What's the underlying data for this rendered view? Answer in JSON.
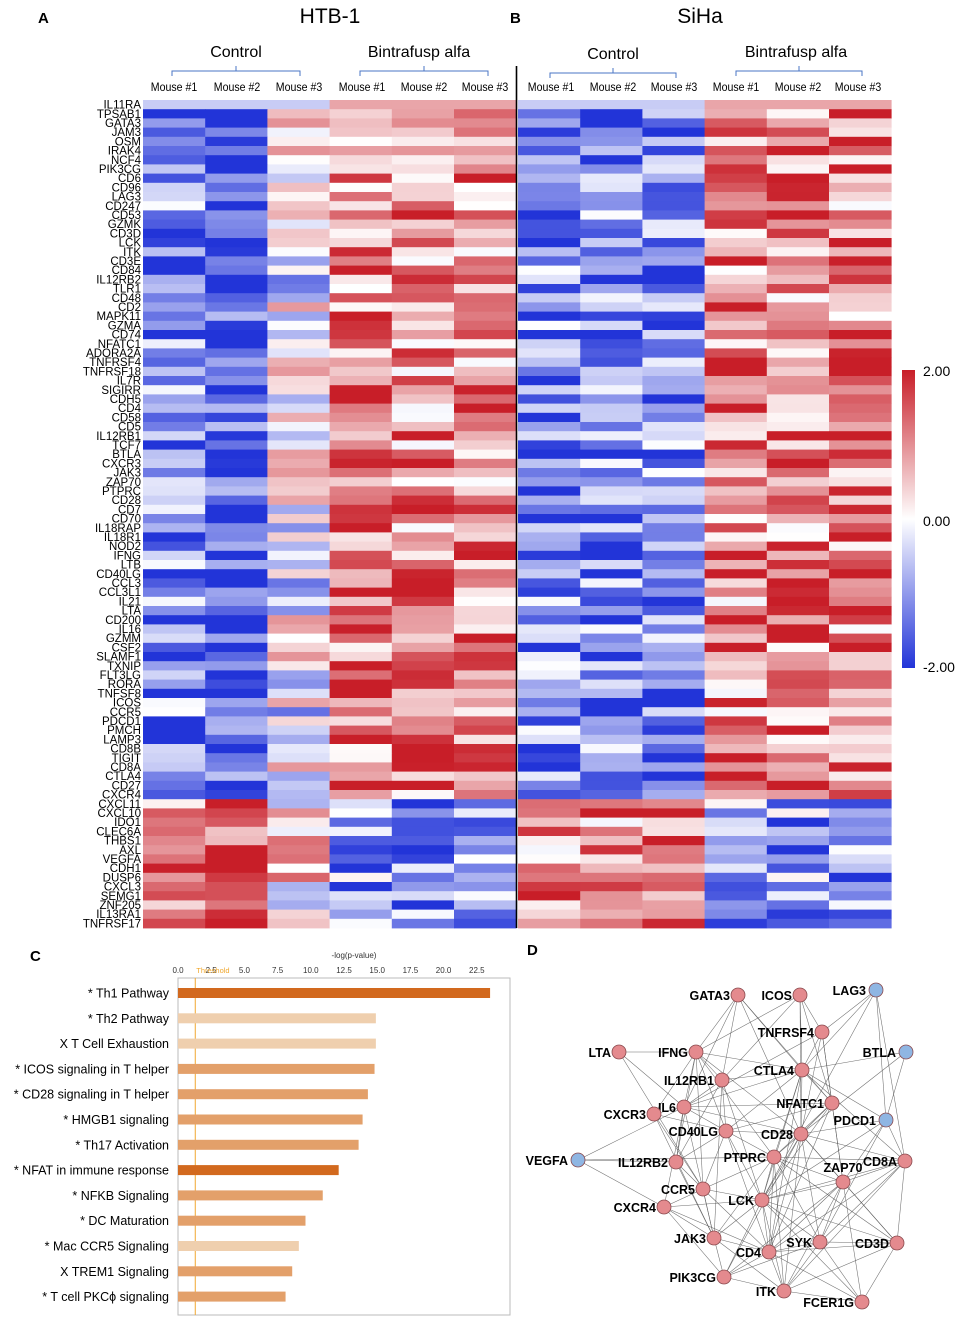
{
  "panels": {
    "A": {
      "letter": "A",
      "title": "HTB-1"
    },
    "B": {
      "letter": "B",
      "title": "SiHa"
    },
    "C": {
      "letter": "C"
    },
    "D": {
      "letter": "D"
    }
  },
  "groups": {
    "control": "Control",
    "treated": "Bintrafusp alfa"
  },
  "mice": [
    "Mouse #1",
    "Mouse #2",
    "Mouse #3"
  ],
  "genes": [
    "IL11RA",
    "TPSAB1",
    "GATA3",
    "JAM3",
    "OSM",
    "IRAK4",
    "NCF4",
    "PIK3CG",
    "CD6",
    "CD96",
    "LAG3",
    "CD247",
    "CD53",
    "GZMK",
    "CD3D",
    "LCK",
    "ITK",
    "CD3E",
    "CD84",
    "IL12RB2",
    "TLR1",
    "CD48",
    "CD2",
    "MAPK11",
    "GZMA",
    "CD74",
    "NFATC1",
    "ADORA2A",
    "TNFRSF4",
    "TNFRSF18",
    "IL7R",
    "SIGIRR",
    "CDH5",
    "CD4",
    "CD58",
    "CD5",
    "IL12RB1",
    "TCF7",
    "BTLA",
    "CXCR3",
    "JAK3",
    "ZAP70",
    "PTPRC",
    "CD28",
    "CD7",
    "CD70",
    "IL18RAP",
    "IL18R1",
    "NOD2",
    "IFNG",
    "LTB",
    "CD40LG",
    "CCL3",
    "CCL3L1",
    "IL21",
    "LTA",
    "CD200",
    "IL16",
    "GZMM",
    "CSF2",
    "SLAMF1",
    "TXNIP",
    "FLT3LG",
    "RORA",
    "TNFSF8",
    "ICOS",
    "CCR5",
    "PDCD1",
    "PMCH",
    "LAMP3",
    "CD8B",
    "TIGIT",
    "CD8A",
    "CTLA4",
    "CD27",
    "CXCR4",
    "CXCL11",
    "CXCL10",
    "IDO1",
    "CLEC6A",
    "THBS1",
    "AXL",
    "VEGFA",
    "CDH1",
    "DUSP6",
    "CXCL3",
    "SEMG1",
    "ZNF205",
    "IL13RA1",
    "TNFRSF17"
  ],
  "colorbar": {
    "max_label": "2.00",
    "mid_label": "0.00",
    "min_label": "-2.00",
    "range": [
      -2,
      2
    ],
    "colors": {
      "high": "#c81e28",
      "mid": "#ffffff",
      "low": "#2234d8"
    }
  },
  "bar_chart": {
    "axis_title": "-log(p-value)",
    "threshold_label": "Threshold",
    "threshold_value": 1.3,
    "xlim": [
      0,
      25
    ],
    "ticks": [
      "0.0",
      "2.5",
      "5.0",
      "7.5",
      "10.0",
      "12.5",
      "15.0",
      "17.5",
      "20.0",
      "22.5"
    ],
    "tick_values": [
      0,
      2.5,
      5,
      7.5,
      10,
      12.5,
      15,
      17.5,
      20,
      22.5
    ],
    "colors": {
      "dark": "#d2691e",
      "medium": "#e3a06a",
      "light": "#efcfae",
      "axis": "#999999"
    },
    "pathways": [
      {
        "label": "* Th1 Pathway",
        "value": 23.5,
        "shade": "dark"
      },
      {
        "label": "* Th2 Pathway",
        "value": 14.9,
        "shade": "light"
      },
      {
        "label": "X T Cell Exhaustion",
        "value": 14.9,
        "shade": "light"
      },
      {
        "label": "* ICOS signaling in T helper",
        "value": 14.8,
        "shade": "medium"
      },
      {
        "label": "* CD28 signaling in T helper",
        "value": 14.3,
        "shade": "medium"
      },
      {
        "label": "* HMGB1 signaling",
        "value": 13.9,
        "shade": "medium"
      },
      {
        "label": "* Th17 Activation",
        "value": 13.6,
        "shade": "medium"
      },
      {
        "label": "* NFAT in immune response",
        "value": 12.1,
        "shade": "dark"
      },
      {
        "label": "* NFKB Signaling",
        "value": 10.9,
        "shade": "medium"
      },
      {
        "label": "* DC Maturation",
        "value": 9.6,
        "shade": "medium"
      },
      {
        "label": "* Mac CCR5 Signaling",
        "value": 9.1,
        "shade": "light"
      },
      {
        "label": "X TREM1 Signaling",
        "value": 8.6,
        "shade": "medium"
      },
      {
        "label": "* T cell PKCϕ signaling",
        "value": 8.1,
        "shade": "medium"
      }
    ]
  },
  "network": {
    "colors": {
      "up": "#e48a8e",
      "down": "#8fb6e3"
    },
    "nodes": [
      {
        "id": "GATA3",
        "label": "GATA3",
        "type": "up"
      },
      {
        "id": "ICOS",
        "label": "ICOS",
        "type": "up"
      },
      {
        "id": "LAG3",
        "label": "LAG3",
        "type": "down"
      },
      {
        "id": "TNFRSF4",
        "label": "TNFRSF4",
        "type": "up"
      },
      {
        "id": "LTA",
        "label": "LTA",
        "type": "up"
      },
      {
        "id": "IFNG",
        "label": "IFNG",
        "type": "up"
      },
      {
        "id": "BTLA",
        "label": "BTLA",
        "type": "down"
      },
      {
        "id": "IL12RB1",
        "label": "IL12RB1",
        "type": "up"
      },
      {
        "id": "CTLA4",
        "label": "CTLA4",
        "type": "up"
      },
      {
        "id": "IL6",
        "label": "IL6",
        "type": "up"
      },
      {
        "id": "CXCR3",
        "label": "CXCR3",
        "type": "up"
      },
      {
        "id": "NFATC1",
        "label": "NFATC1",
        "type": "up"
      },
      {
        "id": "PDCD1",
        "label": "PDCD1",
        "type": "down"
      },
      {
        "id": "CD40LG",
        "label": "CD40LG",
        "type": "up"
      },
      {
        "id": "CD28",
        "label": "CD28",
        "type": "up"
      },
      {
        "id": "VEGFA",
        "label": "VEGFA",
        "type": "down"
      },
      {
        "id": "IL12RB2",
        "label": "IL12RB2",
        "type": "up"
      },
      {
        "id": "PTPRC",
        "label": "PTPRC",
        "type": "up"
      },
      {
        "id": "CD8A",
        "label": "CD8A",
        "type": "up"
      },
      {
        "id": "CCR5",
        "label": "CCR5",
        "type": "up"
      },
      {
        "id": "ZAP70",
        "label": "ZAP70",
        "type": "up"
      },
      {
        "id": "LCK",
        "label": "LCK",
        "type": "up"
      },
      {
        "id": "CXCR4",
        "label": "CXCR4",
        "type": "up"
      },
      {
        "id": "JAK3",
        "label": "JAK3",
        "type": "up"
      },
      {
        "id": "SYK",
        "label": "SYK",
        "type": "up"
      },
      {
        "id": "CD3D",
        "label": "CD3D",
        "type": "up"
      },
      {
        "id": "CD4",
        "label": "CD4",
        "type": "up"
      },
      {
        "id": "PIK3CG",
        "label": "PIK3CG",
        "type": "up"
      },
      {
        "id": "ITK",
        "label": "ITK",
        "type": "up"
      },
      {
        "id": "FCER1G",
        "label": "FCER1G",
        "type": "up"
      }
    ],
    "edges": [
      [
        "GATA3",
        "IFNG"
      ],
      [
        "GATA3",
        "IL12RB1"
      ],
      [
        "GATA3",
        "CTLA4"
      ],
      [
        "GATA3",
        "IL6"
      ],
      [
        "GATA3",
        "CD28"
      ],
      [
        "GATA3",
        "NFATC1"
      ],
      [
        "ICOS",
        "TNFRSF4"
      ],
      [
        "ICOS",
        "CTLA4"
      ],
      [
        "ICOS",
        "CD28"
      ],
      [
        "ICOS",
        "IFNG"
      ],
      [
        "ICOS",
        "IL12RB1"
      ],
      [
        "ICOS",
        "NFATC1"
      ],
      [
        "LAG3",
        "CTLA4"
      ],
      [
        "LAG3",
        "CD8A"
      ],
      [
        "LAG3",
        "LCK"
      ],
      [
        "LAG3",
        "PDCD1"
      ],
      [
        "LAG3",
        "TNFRSF4"
      ],
      [
        "TNFRSF4",
        "CTLA4"
      ],
      [
        "TNFRSF4",
        "CD28"
      ],
      [
        "TNFRSF4",
        "ZAP70"
      ],
      [
        "TNFRSF4",
        "IL6"
      ],
      [
        "TNFRSF4",
        "NFATC1"
      ],
      [
        "LTA",
        "IFNG"
      ],
      [
        "LTA",
        "IL6"
      ],
      [
        "LTA",
        "CCR5"
      ],
      [
        "IFNG",
        "IL12RB1"
      ],
      [
        "IFNG",
        "IL6"
      ],
      [
        "IFNG",
        "CD40LG"
      ],
      [
        "IFNG",
        "CTLA4"
      ],
      [
        "IFNG",
        "IL12RB2"
      ],
      [
        "IFNG",
        "CXCR3"
      ],
      [
        "IFNG",
        "CD28"
      ],
      [
        "IFNG",
        "CCR5"
      ],
      [
        "IFNG",
        "PTPRC"
      ],
      [
        "BTLA",
        "CTLA4"
      ],
      [
        "BTLA",
        "CD28"
      ],
      [
        "BTLA",
        "PDCD1"
      ],
      [
        "IL12RB1",
        "IL6"
      ],
      [
        "IL12RB1",
        "IL12RB2"
      ],
      [
        "IL12RB1",
        "CTLA4"
      ],
      [
        "IL12RB1",
        "CD40LG"
      ],
      [
        "IL12RB1",
        "LCK"
      ],
      [
        "IL12RB1",
        "JAK3"
      ],
      [
        "CTLA4",
        "CD28"
      ],
      [
        "CTLA4",
        "NFATC1"
      ],
      [
        "CTLA4",
        "PDCD1"
      ],
      [
        "CTLA4",
        "CD40LG"
      ],
      [
        "CTLA4",
        "PTPRC"
      ],
      [
        "CTLA4",
        "LCK"
      ],
      [
        "CTLA4",
        "CD8A"
      ],
      [
        "CTLA4",
        "CD4"
      ],
      [
        "CTLA4",
        "IL6"
      ],
      [
        "IL6",
        "CXCR3"
      ],
      [
        "IL6",
        "CD40LG"
      ],
      [
        "IL6",
        "NFATC1"
      ],
      [
        "IL6",
        "CD28"
      ],
      [
        "IL6",
        "VEGFA"
      ],
      [
        "IL6",
        "CXCR4"
      ],
      [
        "IL6",
        "JAK3"
      ],
      [
        "IL6",
        "IL12RB2"
      ],
      [
        "CXCR3",
        "CD40LG"
      ],
      [
        "CXCR3",
        "JAK3"
      ],
      [
        "CXCR3",
        "CCR5"
      ],
      [
        "NFATC1",
        "CD28"
      ],
      [
        "NFATC1",
        "PTPRC"
      ],
      [
        "NFATC1",
        "ZAP70"
      ],
      [
        "NFATC1",
        "CD40LG"
      ],
      [
        "NFATC1",
        "LCK"
      ],
      [
        "NFATC1",
        "CD4"
      ],
      [
        "PDCD1",
        "CD28"
      ],
      [
        "PDCD1",
        "LCK"
      ],
      [
        "PDCD1",
        "ZAP70"
      ],
      [
        "PDCD1",
        "CD8A"
      ],
      [
        "PDCD1",
        "SYK"
      ],
      [
        "CD40LG",
        "CD28"
      ],
      [
        "CD40LG",
        "CD4"
      ],
      [
        "CD40LG",
        "PTPRC"
      ],
      [
        "CD40LG",
        "IL12RB2"
      ],
      [
        "CD40LG",
        "CCR5"
      ],
      [
        "CD40LG",
        "LCK"
      ],
      [
        "CD28",
        "PTPRC"
      ],
      [
        "CD28",
        "ZAP70"
      ],
      [
        "CD28",
        "LCK"
      ],
      [
        "CD28",
        "CD8A"
      ],
      [
        "CD28",
        "CD4"
      ],
      [
        "CD28",
        "SYK"
      ],
      [
        "CD28",
        "ITK"
      ],
      [
        "CD28",
        "CD3D"
      ],
      [
        "CD28",
        "PIK3CG"
      ],
      [
        "VEGFA",
        "IL12RB2"
      ],
      [
        "VEGFA",
        "CXCR4"
      ],
      [
        "VEGFA",
        "PTPRC"
      ],
      [
        "IL12RB2",
        "JAK3"
      ],
      [
        "IL12RB2",
        "CCR5"
      ],
      [
        "PTPRC",
        "LCK"
      ],
      [
        "PTPRC",
        "ZAP70"
      ],
      [
        "PTPRC",
        "CD4"
      ],
      [
        "PTPRC",
        "SYK"
      ],
      [
        "PTPRC",
        "JAK3"
      ],
      [
        "PTPRC",
        "CD3D"
      ],
      [
        "PTPRC",
        "ITK"
      ],
      [
        "PTPRC",
        "CCR5"
      ],
      [
        "PTPRC",
        "CD8A"
      ],
      [
        "CD8A",
        "LCK"
      ],
      [
        "CD8A",
        "ZAP70"
      ],
      [
        "CD8A",
        "CD3D"
      ],
      [
        "CD8A",
        "SYK"
      ],
      [
        "CD8A",
        "CD4"
      ],
      [
        "CD8A",
        "ITK"
      ],
      [
        "CCR5",
        "CXCR4"
      ],
      [
        "CCR5",
        "LCK"
      ],
      [
        "CCR5",
        "JAK3"
      ],
      [
        "CCR5",
        "CD4"
      ],
      [
        "ZAP70",
        "LCK"
      ],
      [
        "ZAP70",
        "SYK"
      ],
      [
        "ZAP70",
        "CD3D"
      ],
      [
        "ZAP70",
        "ITK"
      ],
      [
        "ZAP70",
        "CD4"
      ],
      [
        "ZAP70",
        "FCER1G"
      ],
      [
        "ZAP70",
        "PIK3CG"
      ],
      [
        "LCK",
        "CD4"
      ],
      [
        "LCK",
        "SYK"
      ],
      [
        "LCK",
        "ITK"
      ],
      [
        "LCK",
        "CD3D"
      ],
      [
        "LCK",
        "JAK3"
      ],
      [
        "LCK",
        "PIK3CG"
      ],
      [
        "LCK",
        "CXCR4"
      ],
      [
        "LCK",
        "FCER1G"
      ],
      [
        "CXCR4",
        "JAK3"
      ],
      [
        "CXCR4",
        "CD4"
      ],
      [
        "CXCR4",
        "PIK3CG"
      ],
      [
        "JAK3",
        "CD4"
      ],
      [
        "JAK3",
        "PIK3CG"
      ],
      [
        "JAK3",
        "ITK"
      ],
      [
        "SYK",
        "CD3D"
      ],
      [
        "SYK",
        "ITK"
      ],
      [
        "SYK",
        "FCER1G"
      ],
      [
        "SYK",
        "PIK3CG"
      ],
      [
        "SYK",
        "CD4"
      ],
      [
        "CD3D",
        "ITK"
      ],
      [
        "CD3D",
        "FCER1G"
      ],
      [
        "CD3D",
        "CD4"
      ],
      [
        "CD4",
        "ITK"
      ],
      [
        "CD4",
        "PIK3CG"
      ],
      [
        "CD4",
        "FCER1G"
      ],
      [
        "PIK3CG",
        "ITK"
      ],
      [
        "ITK",
        "FCER1G"
      ]
    ]
  }
}
